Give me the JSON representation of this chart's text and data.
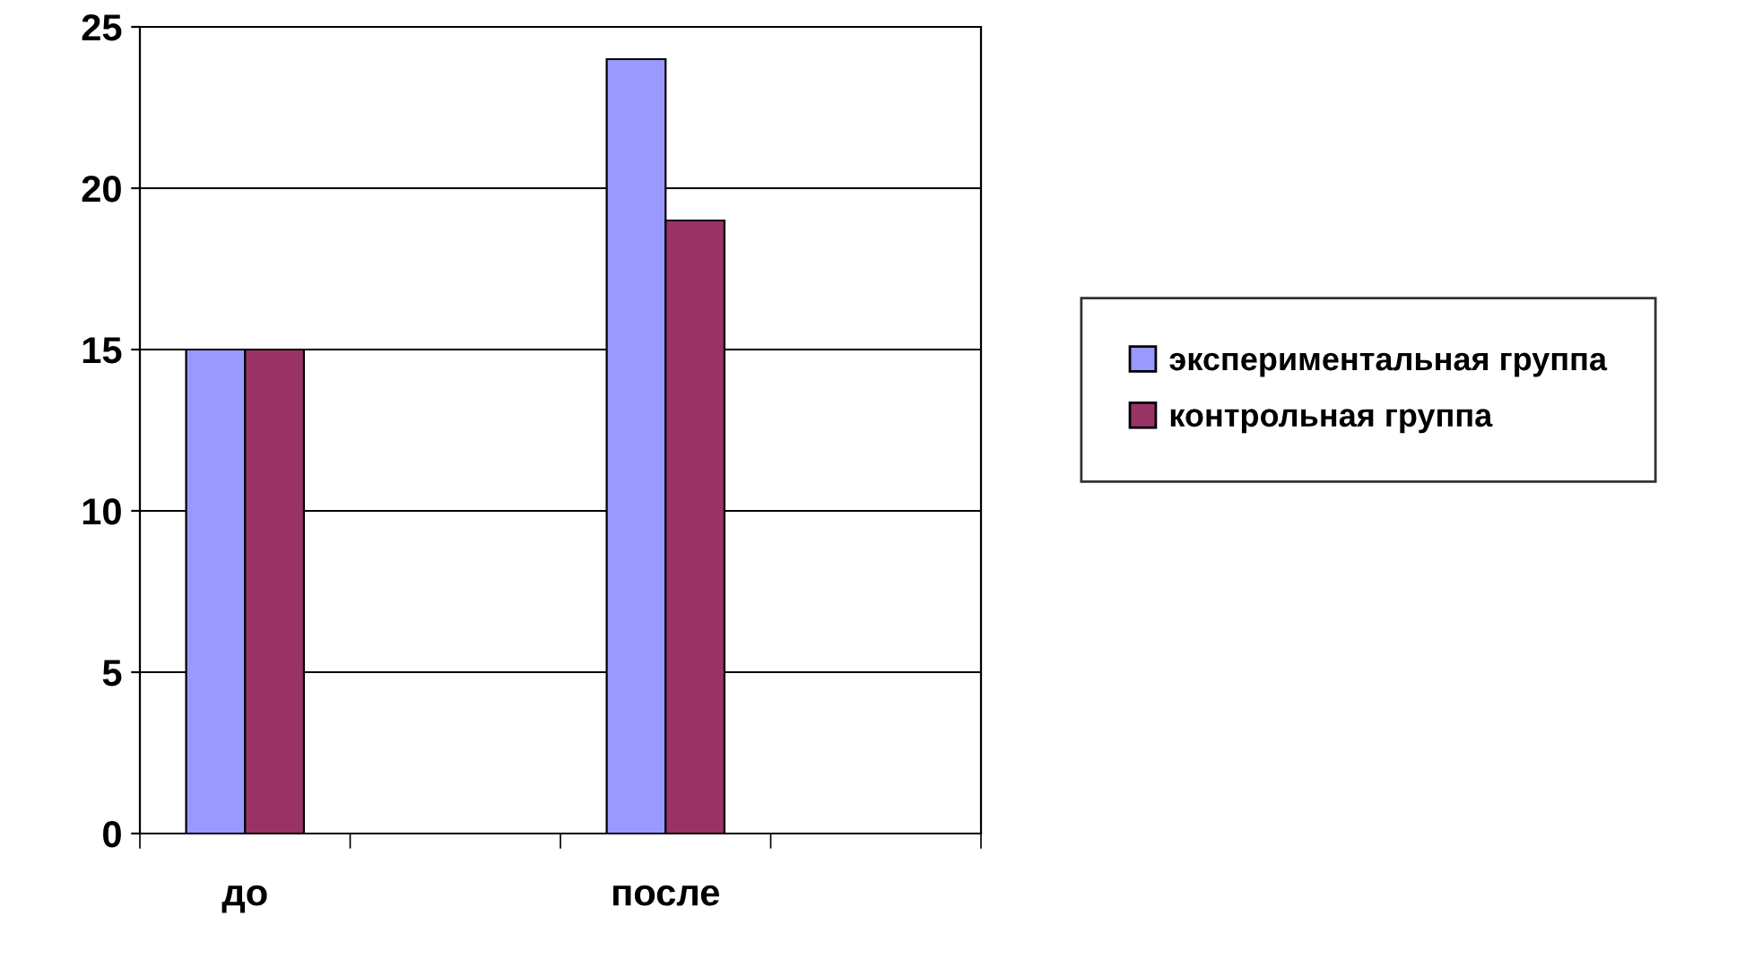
{
  "chart_data": {
    "type": "bar",
    "categories": [
      "до",
      null,
      "после",
      null
    ],
    "series": [
      {
        "name": "экспериментальная группа",
        "color": "#9999ff",
        "values": [
          15,
          null,
          24,
          null
        ]
      },
      {
        "name": "контрольная группа",
        "color": "#993366",
        "values": [
          15,
          null,
          19,
          null
        ]
      }
    ],
    "ylim": [
      0,
      25
    ],
    "yticks": [
      0,
      5,
      10,
      15,
      20,
      25
    ],
    "grid": "y",
    "legend": "right"
  }
}
